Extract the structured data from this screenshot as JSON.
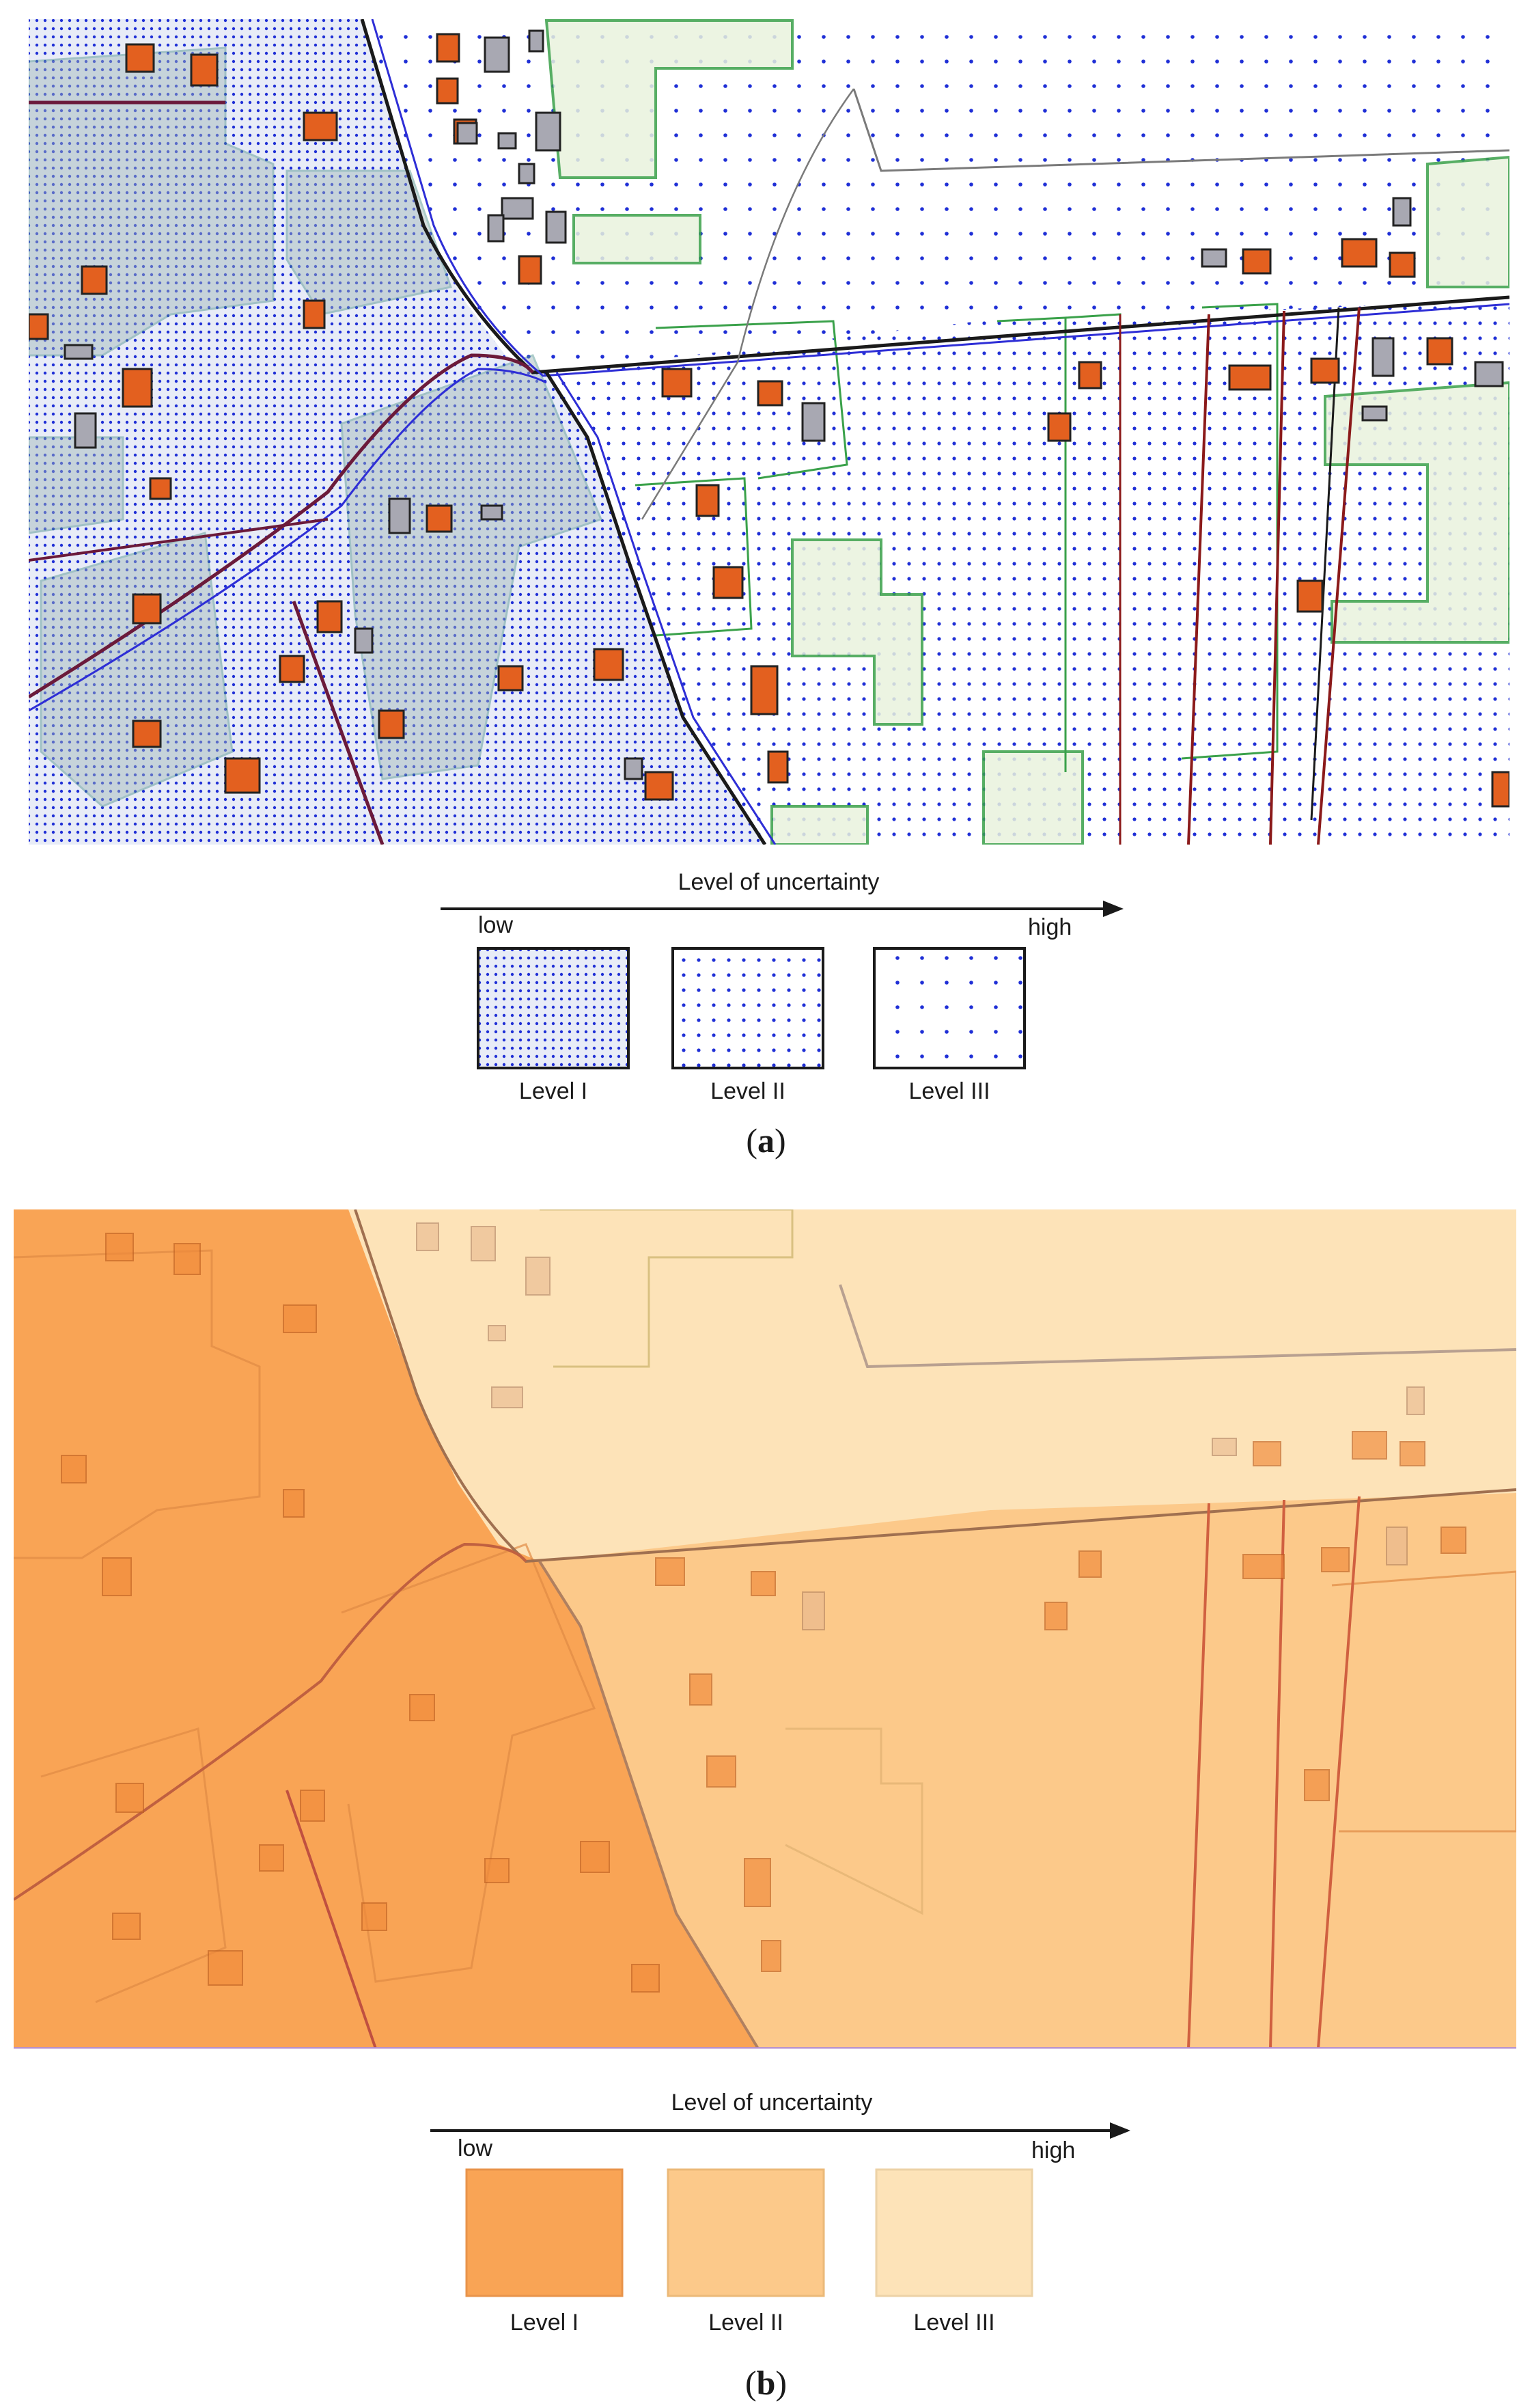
{
  "figure": {
    "panel_a": {
      "caption_label": "a",
      "legend": {
        "axis_title": "Level of uncertainty",
        "low_label": "low",
        "high_label": "high",
        "levels": [
          {
            "label": "Level I",
            "pattern": "dense-dots"
          },
          {
            "label": "Level II",
            "pattern": "medium-dots"
          },
          {
            "label": "Level III",
            "pattern": "sparse-dots"
          }
        ]
      },
      "colors": {
        "dots": "#1f2fd6",
        "building_orange": "#e3601f",
        "building_gray": "#a8a8b2",
        "green_parcel": "#3aa14a",
        "road": "#6b1a3a"
      }
    },
    "panel_b": {
      "caption_label": "b",
      "legend": {
        "axis_title": "Level of uncertainty",
        "low_label": "low",
        "high_label": "high",
        "levels": [
          {
            "label": "Level I",
            "color": "#f9a455"
          },
          {
            "label": "Level II",
            "color": "#fcc98a"
          },
          {
            "label": "Level III",
            "color": "#fde3b8"
          }
        ]
      }
    }
  }
}
